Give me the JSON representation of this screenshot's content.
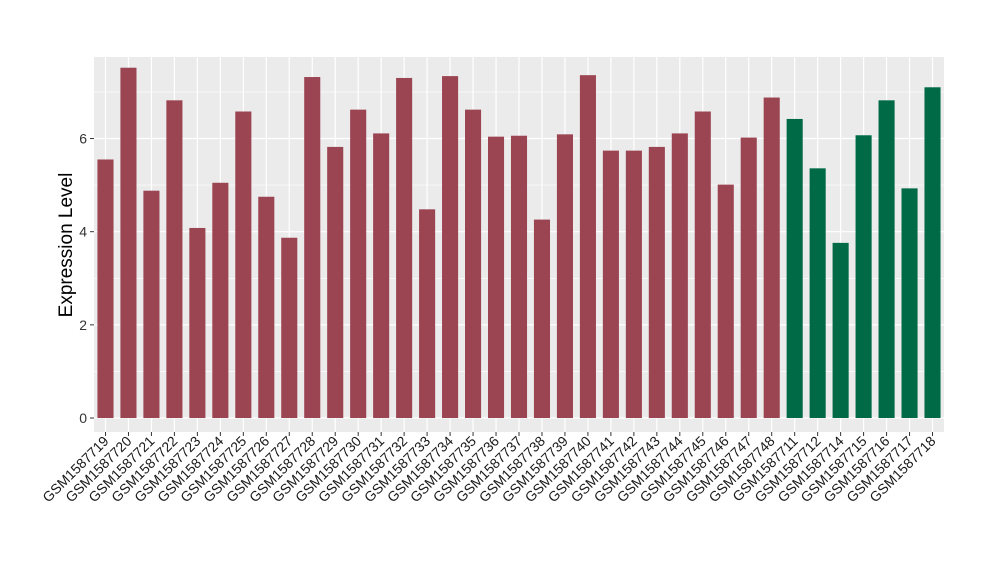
{
  "chart_data": {
    "type": "bar",
    "title": "",
    "xlabel": "",
    "ylabel": "Expression Level",
    "ylim": [
      -0.3,
      7.75
    ],
    "yticks": [
      0,
      2,
      4,
      6
    ],
    "grid": true,
    "colors": {
      "group1": "#9b4452",
      "group2": "#006a46",
      "panel": "#ebebeb",
      "gridline": "#ffffff"
    },
    "bars": [
      {
        "category": "GSM1587719",
        "value": 5.55,
        "group": "group1"
      },
      {
        "category": "GSM1587720",
        "value": 7.52,
        "group": "group1"
      },
      {
        "category": "GSM1587721",
        "value": 4.88,
        "group": "group1"
      },
      {
        "category": "GSM1587722",
        "value": 6.82,
        "group": "group1"
      },
      {
        "category": "GSM1587723",
        "value": 4.08,
        "group": "group1"
      },
      {
        "category": "GSM1587724",
        "value": 5.05,
        "group": "group1"
      },
      {
        "category": "GSM1587725",
        "value": 6.58,
        "group": "group1"
      },
      {
        "category": "GSM1587726",
        "value": 4.75,
        "group": "group1"
      },
      {
        "category": "GSM1587727",
        "value": 3.87,
        "group": "group1"
      },
      {
        "category": "GSM1587728",
        "value": 7.32,
        "group": "group1"
      },
      {
        "category": "GSM1587729",
        "value": 5.82,
        "group": "group1"
      },
      {
        "category": "GSM1587730",
        "value": 6.62,
        "group": "group1"
      },
      {
        "category": "GSM1587731",
        "value": 6.11,
        "group": "group1"
      },
      {
        "category": "GSM1587732",
        "value": 7.3,
        "group": "group1"
      },
      {
        "category": "GSM1587733",
        "value": 4.48,
        "group": "group1"
      },
      {
        "category": "GSM1587734",
        "value": 7.34,
        "group": "group1"
      },
      {
        "category": "GSM1587735",
        "value": 6.62,
        "group": "group1"
      },
      {
        "category": "GSM1587736",
        "value": 6.04,
        "group": "group1"
      },
      {
        "category": "GSM1587737",
        "value": 6.06,
        "group": "group1"
      },
      {
        "category": "GSM1587738",
        "value": 4.26,
        "group": "group1"
      },
      {
        "category": "GSM1587739",
        "value": 6.09,
        "group": "group1"
      },
      {
        "category": "GSM1587740",
        "value": 7.36,
        "group": "group1"
      },
      {
        "category": "GSM1587741",
        "value": 5.74,
        "group": "group1"
      },
      {
        "category": "GSM1587742",
        "value": 5.74,
        "group": "group1"
      },
      {
        "category": "GSM1587743",
        "value": 5.82,
        "group": "group1"
      },
      {
        "category": "GSM1587744",
        "value": 6.11,
        "group": "group1"
      },
      {
        "category": "GSM1587745",
        "value": 6.58,
        "group": "group1"
      },
      {
        "category": "GSM1587746",
        "value": 5.01,
        "group": "group1"
      },
      {
        "category": "GSM1587747",
        "value": 6.02,
        "group": "group1"
      },
      {
        "category": "GSM1587748",
        "value": 6.88,
        "group": "group1"
      },
      {
        "category": "GSM1587711",
        "value": 6.42,
        "group": "group2"
      },
      {
        "category": "GSM1587712",
        "value": 5.36,
        "group": "group2"
      },
      {
        "category": "GSM1587714",
        "value": 3.76,
        "group": "group2"
      },
      {
        "category": "GSM1587715",
        "value": 6.07,
        "group": "group2"
      },
      {
        "category": "GSM1587716",
        "value": 6.82,
        "group": "group2"
      },
      {
        "category": "GSM1587717",
        "value": 4.93,
        "group": "group2"
      },
      {
        "category": "GSM1587718",
        "value": 7.1,
        "group": "group2"
      }
    ]
  }
}
